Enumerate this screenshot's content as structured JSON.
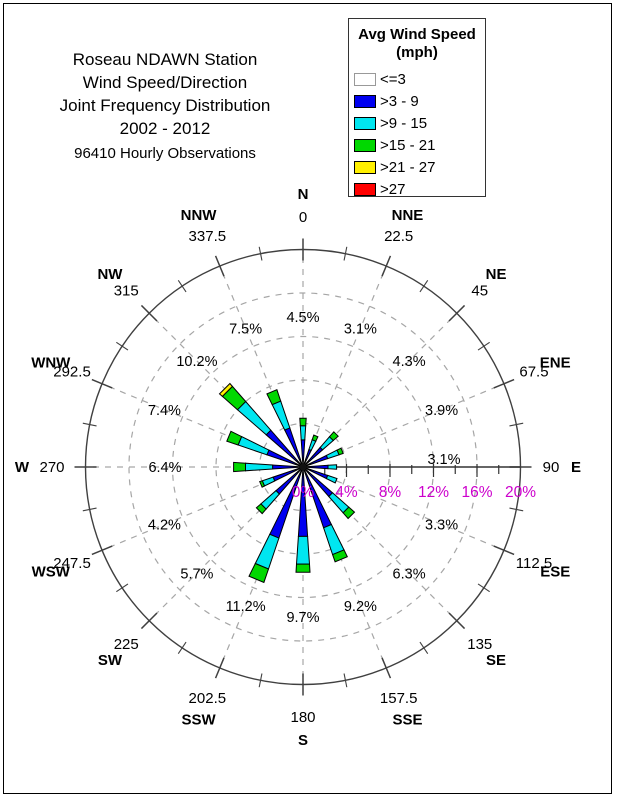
{
  "title": {
    "lines": [
      "Roseau NDAWN Station",
      "Wind Speed/Direction",
      "Joint Frequency Distribution",
      "2002 - 2012"
    ],
    "subtitle": "96410 Hourly Observations"
  },
  "legend": {
    "title_line1": "Avg Wind Speed",
    "title_line2": "(mph)",
    "items": [
      {
        "label": "<=3",
        "color": "#FFFFFF",
        "border": "#999999"
      },
      {
        "label": ">3 - 9",
        "color": "#0000F0",
        "border": "#000000"
      },
      {
        "label": ">9 - 15",
        "color": "#00E6F0",
        "border": "#000000"
      },
      {
        "label": ">15 - 21",
        "color": "#00D800",
        "border": "#000000"
      },
      {
        "label": ">21 - 27",
        "color": "#FFF000",
        "border": "#000000"
      },
      {
        "label": ">27",
        "color": "#FF0000",
        "border": "#000000"
      }
    ]
  },
  "chart_data": {
    "type": "wind-rose",
    "speed_bins_mph": [
      "<=3",
      ">3 - 9",
      ">9 - 15",
      ">15 - 21",
      ">21 - 27",
      ">27"
    ],
    "bin_colors": [
      "#FFFFFF",
      "#0000F0",
      "#00E6F0",
      "#00D800",
      "#FFF000",
      "#FF0000"
    ],
    "radial_axis": {
      "unit": "% of observations",
      "tick_labels": [
        "0%",
        "4%",
        "8%",
        "12%",
        "16%",
        "20%"
      ],
      "tick_values": [
        0,
        4,
        8,
        12,
        16,
        20
      ],
      "max": 20,
      "dashed_rings": [
        4,
        8,
        12,
        16
      ],
      "label_color": "#CC00CC"
    },
    "directions": [
      {
        "name": "N",
        "deg": "0",
        "angle": 0,
        "total_pct": 4.5,
        "pct_label": "4.5%",
        "segments": [
          0,
          2.5,
          1.3,
          0.7,
          0,
          0
        ]
      },
      {
        "name": "NNE",
        "deg": "22.5",
        "angle": 22.5,
        "total_pct": 3.1,
        "pct_label": "3.1%",
        "segments": [
          0,
          1.7,
          0.95,
          0.45,
          0,
          0
        ]
      },
      {
        "name": "NE",
        "deg": "45",
        "angle": 45,
        "total_pct": 4.3,
        "pct_label": "4.3%",
        "segments": [
          0,
          2.4,
          1.3,
          0.6,
          0,
          0
        ]
      },
      {
        "name": "ENE",
        "deg": "67.5",
        "angle": 67.5,
        "total_pct": 3.9,
        "pct_label": "3.9%",
        "segments": [
          0,
          2.4,
          1.1,
          0.4,
          0,
          0
        ]
      },
      {
        "name": "E",
        "deg": "90",
        "angle": 90,
        "total_pct": 3.1,
        "pct_label": "3.1%",
        "segments": [
          0,
          2.3,
          0.8,
          0,
          0,
          0
        ]
      },
      {
        "name": "ESE",
        "deg": "112.5",
        "angle": 112.5,
        "total_pct": 3.3,
        "pct_label": "3.3%",
        "segments": [
          0,
          2.4,
          0.9,
          0,
          0,
          0
        ]
      },
      {
        "name": "SE",
        "deg": "135",
        "angle": 135,
        "total_pct": 6.3,
        "pct_label": "6.3%",
        "segments": [
          0,
          3.6,
          2.0,
          0.7,
          0,
          0
        ]
      },
      {
        "name": "SSE",
        "deg": "157.5",
        "angle": 157.5,
        "total_pct": 9.2,
        "pct_label": "9.2%",
        "segments": [
          0,
          5.9,
          2.6,
          0.7,
          0,
          0
        ]
      },
      {
        "name": "S",
        "deg": "180",
        "angle": 180,
        "total_pct": 9.7,
        "pct_label": "9.7%",
        "segments": [
          0,
          6.4,
          2.55,
          0.75,
          0,
          0
        ]
      },
      {
        "name": "SSW",
        "deg": "202.5",
        "angle": 202.5,
        "total_pct": 11.2,
        "pct_label": "11.2%",
        "segments": [
          0,
          6.9,
          3.0,
          1.3,
          0,
          0
        ]
      },
      {
        "name": "SW",
        "deg": "225",
        "angle": 225,
        "total_pct": 5.7,
        "pct_label": "5.7%",
        "segments": [
          0,
          3.3,
          1.85,
          0.55,
          0,
          0
        ]
      },
      {
        "name": "WSW",
        "deg": "247.5",
        "angle": 247.5,
        "total_pct": 4.2,
        "pct_label": "4.2%",
        "segments": [
          0,
          2.9,
          1.05,
          0.25,
          0,
          0
        ]
      },
      {
        "name": "W",
        "deg": "270",
        "angle": 270,
        "total_pct": 6.4,
        "pct_label": "6.4%",
        "segments": [
          0,
          2.8,
          2.5,
          1.1,
          0,
          0
        ]
      },
      {
        "name": "WNW",
        "deg": "292.5",
        "angle": 292.5,
        "total_pct": 7.4,
        "pct_label": "7.4%",
        "segments": [
          0,
          3.5,
          2.8,
          1.1,
          0,
          0
        ]
      },
      {
        "name": "NW",
        "deg": "315",
        "angle": 315,
        "total_pct": 10.2,
        "pct_label": "10.2%",
        "segments": [
          0,
          4.5,
          3.5,
          1.85,
          0.35,
          0
        ]
      },
      {
        "name": "NNW",
        "deg": "337.5",
        "angle": 337.5,
        "total_pct": 7.5,
        "pct_label": "7.5%",
        "segments": [
          0,
          3.8,
          2.6,
          1.1,
          0,
          0
        ]
      }
    ]
  }
}
